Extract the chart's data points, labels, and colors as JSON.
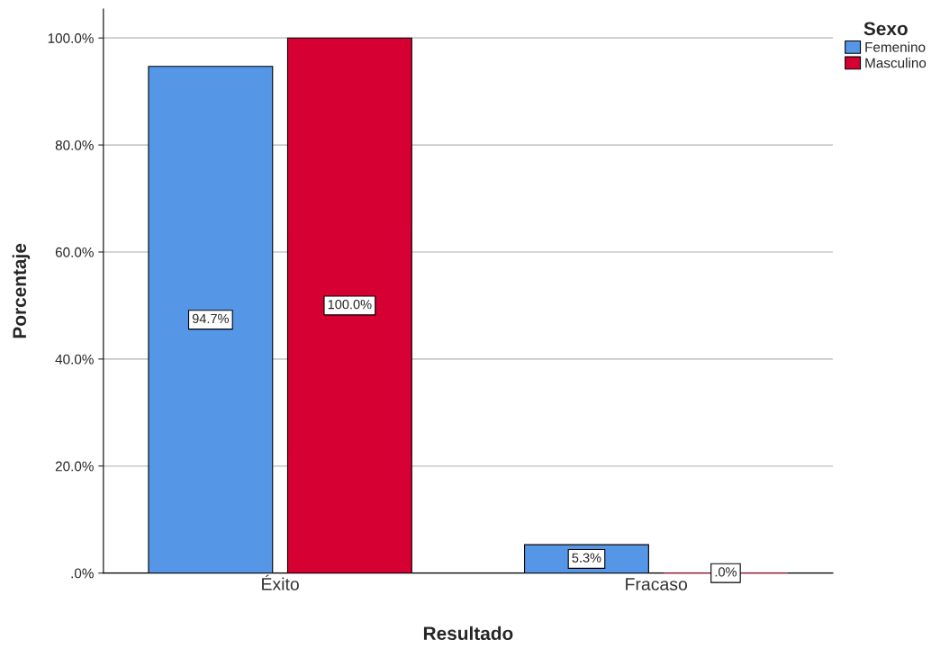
{
  "chart_data": {
    "type": "bar",
    "xlabel": "Resultado",
    "ylabel": "Porcentaje",
    "legend_title": "Sexo",
    "categories": [
      "Éxito",
      "Fracaso"
    ],
    "series": [
      {
        "name": "Femenino",
        "color": "#5596e6",
        "values": [
          94.7,
          5.3
        ],
        "value_labels": [
          "94.7%",
          "5.3%"
        ]
      },
      {
        "name": "Masculino",
        "color": "#d60032",
        "values": [
          100.0,
          0.0
        ],
        "value_labels": [
          "100.0%",
          ".0%"
        ]
      }
    ],
    "ylim": [
      0,
      105.4
    ],
    "yticks": [
      {
        "value": 0,
        "label": ".0%"
      },
      {
        "value": 20,
        "label": "20.0%"
      },
      {
        "value": 40,
        "label": "40.0%"
      },
      {
        "value": 60,
        "label": "60.0%"
      },
      {
        "value": 80,
        "label": "80.0%"
      },
      {
        "value": 100,
        "label": "100.0%"
      }
    ],
    "grid": "y",
    "legend": "top right"
  }
}
